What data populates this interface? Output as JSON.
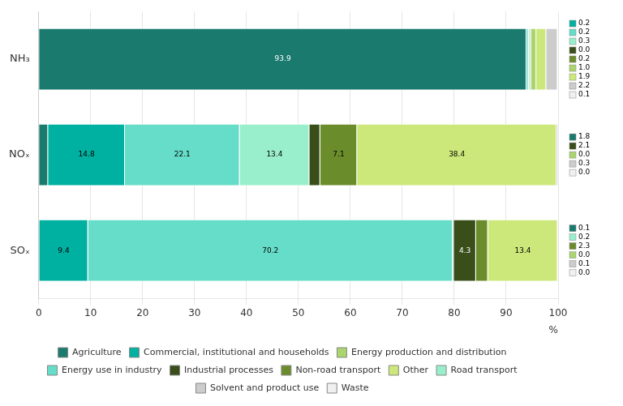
{
  "chart_data": {
    "type": "bar",
    "orientation": "horizontal",
    "stacked": true,
    "categories": [
      "NH₃",
      "NOₓ",
      "SOₓ"
    ],
    "series": [
      {
        "name": "Agriculture",
        "color": "#1a7a6e",
        "values": [
          93.9,
          1.8,
          0.1
        ]
      },
      {
        "name": "Commercial, institutional and households",
        "color": "#00b0a0",
        "values": [
          0.2,
          14.8,
          9.4
        ]
      },
      {
        "name": "Energy use in industry",
        "color": "#66ddc8",
        "values": [
          0.2,
          22.1,
          70.2
        ]
      },
      {
        "name": "Road transport",
        "color": "#99eecc",
        "values": [
          0.3,
          13.4,
          0.2
        ]
      },
      {
        "name": "Industrial processes",
        "color": "#3a4e1a",
        "values": [
          0.0,
          2.1,
          4.3
        ]
      },
      {
        "name": "Non-road transport",
        "color": "#6b8c2a",
        "values": [
          0.2,
          7.1,
          2.3
        ]
      },
      {
        "name": "Energy production and distribution",
        "color": "#aad46e",
        "values": [
          1.0,
          0.0,
          0.0
        ]
      },
      {
        "name": "Other",
        "color": "#cce87a",
        "values": [
          1.9,
          38.4,
          13.4
        ]
      },
      {
        "name": "Solvent and product use",
        "color": "#cccccc",
        "values": [
          2.2,
          0.3,
          0.1
        ]
      },
      {
        "name": "Waste",
        "color": "#f0f0f0",
        "values": [
          0.1,
          0.0,
          0.0
        ]
      }
    ],
    "xlabel": "%",
    "xlim": [
      0,
      100
    ],
    "xticks": [
      0,
      10,
      20,
      30,
      40,
      50,
      60,
      70,
      80,
      90,
      100
    ],
    "grid": true,
    "legend": "bottom",
    "data_labels": true
  }
}
